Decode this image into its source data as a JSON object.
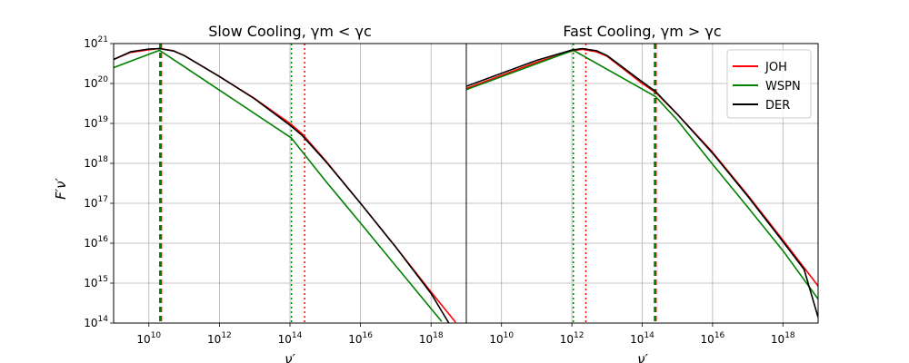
{
  "figure": {
    "ylabel": "F′ν′",
    "xlabel": "ν′"
  },
  "colors": {
    "JOH": "#ff0000",
    "WSPN": "#008000",
    "DER": "#000000",
    "grid": "#b0b0b0"
  },
  "chart_data": [
    {
      "type": "line",
      "title": "Slow Cooling, γm < γc",
      "x_scale": "log",
      "y_scale": "log",
      "xlim": [
        1000000000.0,
        1e+19
      ],
      "ylim": [
        100000000000000.0,
        1e+21
      ],
      "x_ticks": [
        "10^10",
        "10^12",
        "10^14",
        "10^16",
        "10^18"
      ],
      "y_ticks": [
        "10^14",
        "10^15",
        "10^16",
        "10^17",
        "10^18",
        "10^19",
        "10^20",
        "10^21"
      ],
      "grid": true,
      "series": [
        {
          "name": "JOH",
          "points": [
            [
              1000000000.0,
              4e+20
            ],
            [
              3000000000.0,
              6e+20
            ],
            [
              10000000000.0,
              7e+20
            ],
            [
              20000000000.0,
              7.5e+20
            ],
            [
              50000000000.0,
              6.6e+20
            ],
            [
              100000000000.0,
              5e+20
            ],
            [
              1000000000000.0,
              1.5e+20
            ],
            [
              10000000000000.0,
              4.2e+19
            ],
            [
              100000000000000.0,
              1e+19
            ],
            [
              220000000000000.0,
              5.5e+18
            ],
            [
              1000000000000000.0,
              1.2e+18
            ],
            [
              1e+16,
              1e+17
            ],
            [
              1e+17,
              8000000000000000.0
            ],
            [
              1e+18,
              600000000000000.0
            ],
            [
              5e+18,
              105000000000000.0
            ]
          ]
        },
        {
          "name": "WSPN",
          "points": [
            [
              1000000000.0,
              2.5e+20
            ],
            [
              20000000000.0,
              6.8e+20
            ],
            [
              110000000000000.0,
              4.3e+18
            ],
            [
              1000000000000000.0,
              3.7e+17
            ],
            [
              1e+16,
              3.2e+16
            ],
            [
              1e+17,
              2700000000000000.0
            ],
            [
              2e+18,
              110000000000000.0
            ]
          ]
        },
        {
          "name": "DER",
          "points": [
            [
              1000000000.0,
              4e+20
            ],
            [
              3000000000.0,
              6.2e+20
            ],
            [
              10000000000.0,
              7.3e+20
            ],
            [
              20000000000.0,
              7.5e+20
            ],
            [
              50000000000.0,
              6.5e+20
            ],
            [
              100000000000.0,
              5e+20
            ],
            [
              1000000000000.0,
              1.5e+20
            ],
            [
              10000000000000.0,
              4.1e+19
            ],
            [
              100000000000000.0,
              9e+18
            ],
            [
              220000000000000.0,
              5e+18
            ],
            [
              1000000000000000.0,
              1.15e+18
            ],
            [
              1e+16,
              1e+17
            ],
            [
              1e+17,
              8000000000000000.0
            ],
            [
              1e+18,
              550000000000000.0
            ],
            [
              3.2e+18,
              100000000000000.0
            ]
          ]
        }
      ],
      "vlines": [
        {
          "x": 22000000000.0,
          "color": "JOH",
          "style": "dashed"
        },
        {
          "x": 21000000000.0,
          "color": "WSPN",
          "style": "dashed"
        },
        {
          "x": 260000000000000.0,
          "color": "JOH",
          "style": "dotted"
        },
        {
          "x": 110000000000000.0,
          "color": "WSPN",
          "style": "dotted"
        }
      ]
    },
    {
      "type": "line",
      "title": "Fast Cooling, γm > γc",
      "x_scale": "log",
      "y_scale": "log",
      "xlim": [
        1000000000.0,
        1e+19
      ],
      "ylim": [
        100000000000000.0,
        1e+21
      ],
      "x_ticks": [
        "10^10",
        "10^12",
        "10^14",
        "10^16",
        "10^18"
      ],
      "y_ticks": [
        "10^14",
        "10^15",
        "10^16",
        "10^17",
        "10^18",
        "10^19",
        "10^20",
        "10^21"
      ],
      "grid": true,
      "legend": {
        "position": "top-right",
        "entries": [
          "JOH",
          "WSPN",
          "DER"
        ]
      },
      "series": [
        {
          "name": "JOH",
          "points": [
            [
              1000000000.0,
              7.5e+19
            ],
            [
              10000000000.0,
              1.6e+20
            ],
            [
              100000000000.0,
              3.4e+20
            ],
            [
              1000000000000.0,
              6.5e+20
            ],
            [
              2000000000000.0,
              7.2e+20
            ],
            [
              5000000000000.0,
              6.2e+20
            ],
            [
              10000000000000.0,
              4.8e+20
            ],
            [
              100000000000000.0,
              1e+20
            ],
            [
              240000000000000.0,
              6e+19
            ],
            [
              1000000000000000.0,
              1.7e+19
            ],
            [
              1e+16,
              1.9e+18
            ],
            [
              1e+17,
              1.6e+17
            ],
            [
              1e+18,
              1.2e+16
            ],
            [
              1e+19,
              850000000000000.0
            ]
          ]
        },
        {
          "name": "WSPN",
          "points": [
            [
              1000000000.0,
              7e+19
            ],
            [
              1100000000000.0,
              6.8e+20
            ],
            [
              240000000000000.0,
              4.7e+19
            ],
            [
              1000000000000000.0,
              1.2e+19
            ],
            [
              1e+16,
              9.5e+17
            ],
            [
              1e+17,
              8e+16
            ],
            [
              1e+18,
              6500000000000000.0
            ],
            [
              1e+19,
              400000000000000.0
            ]
          ]
        },
        {
          "name": "DER",
          "points": [
            [
              1000000000.0,
              8.5e+19
            ],
            [
              10000000000.0,
              1.8e+20
            ],
            [
              100000000000.0,
              3.8e+20
            ],
            [
              1000000000000.0,
              6.9e+20
            ],
            [
              2000000000000.0,
              7.5e+20
            ],
            [
              5000000000000.0,
              6.6e+20
            ],
            [
              10000000000000.0,
              5e+20
            ],
            [
              100000000000000.0,
              1.1e+20
            ],
            [
              240000000000000.0,
              6.3e+19
            ],
            [
              1000000000000000.0,
              1.7e+19
            ],
            [
              1e+16,
              1.8e+18
            ],
            [
              1e+17,
              1.5e+17
            ],
            [
              1e+18,
              1.1e+16
            ],
            [
              4e+18,
              2200000000000000.0
            ],
            [
              1e+19,
              140000000000000.0
            ]
          ]
        }
      ],
      "vlines": [
        {
          "x": 240000000000000.0,
          "color": "JOH",
          "style": "dashed"
        },
        {
          "x": 230000000000000.0,
          "color": "WSPN",
          "style": "dashed"
        },
        {
          "x": 2500000000000.0,
          "color": "JOH",
          "style": "dotted"
        },
        {
          "x": 1100000000000.0,
          "color": "WSPN",
          "style": "dotted"
        }
      ]
    }
  ]
}
